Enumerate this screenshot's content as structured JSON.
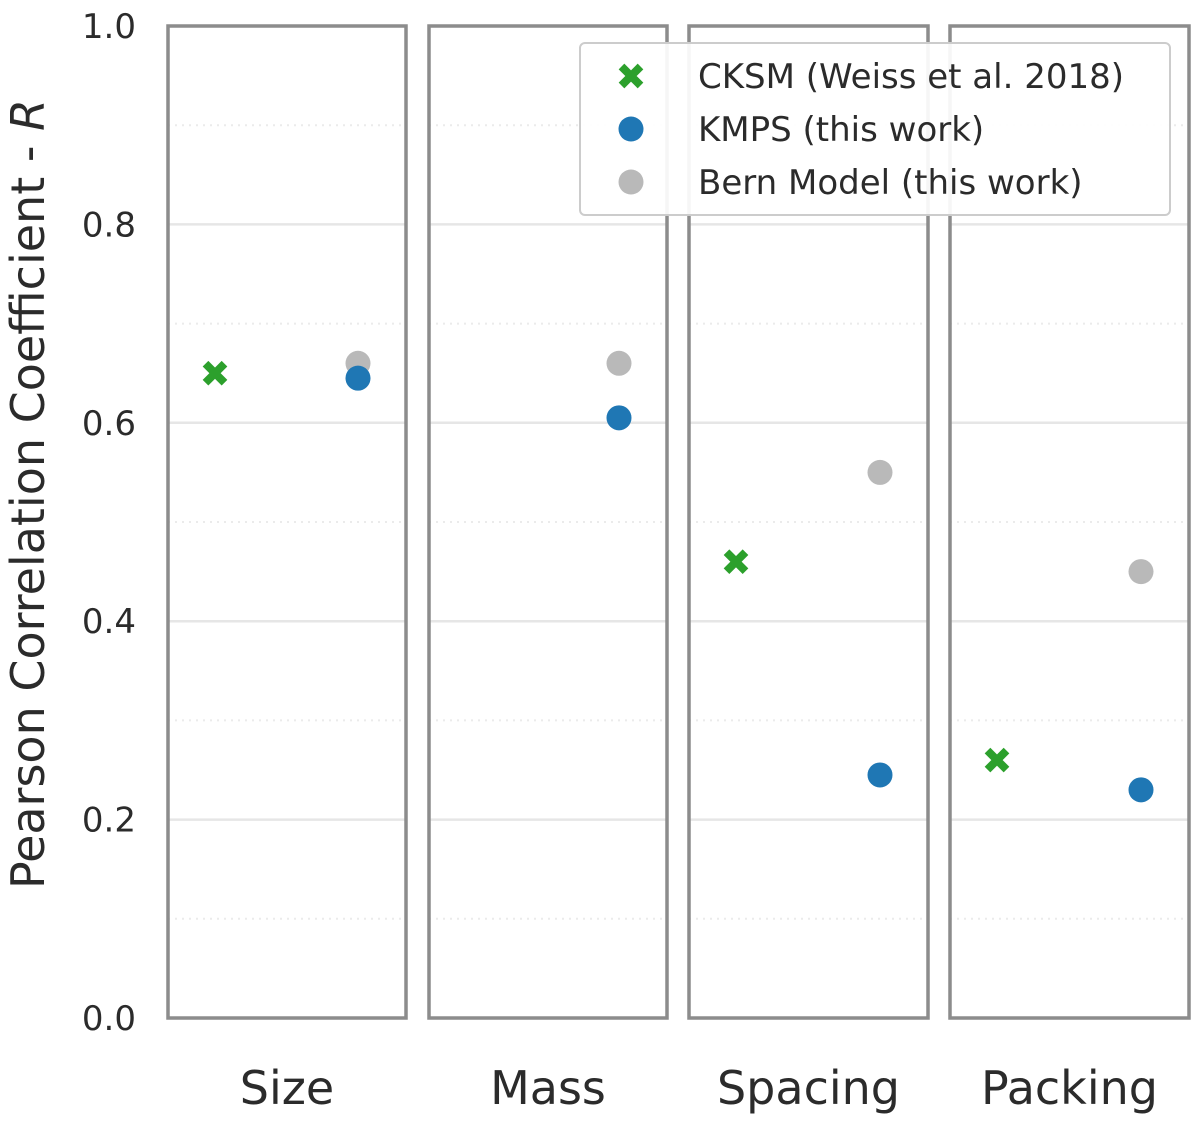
{
  "chart_data": {
    "type": "scatter",
    "title": "",
    "ylabel": "Pearson Correlation Coefficient - ",
    "ylabel_italic": "R",
    "ylim": [
      0.0,
      1.0
    ],
    "yticks": [
      "0.0",
      "0.2",
      "0.4",
      "0.6",
      "0.8",
      "1.0"
    ],
    "ytick_values": [
      0.0,
      0.2,
      0.4,
      0.6,
      0.8,
      1.0
    ],
    "minor_gridlines": [
      0.1,
      0.3,
      0.5,
      0.7,
      0.9
    ],
    "categories": [
      "Size",
      "Mass",
      "Spacing",
      "Packing"
    ],
    "legend_position": "top-right",
    "series": [
      {
        "name": "CKSM (Weiss et al. 2018)",
        "marker": "x",
        "color": "#2ca02c",
        "slot": "left",
        "values": [
          0.65,
          null,
          0.46,
          0.26
        ]
      },
      {
        "name": "KMPS (this work)",
        "marker": "circle",
        "color": "#1f77b4",
        "slot": "right",
        "values": [
          0.645,
          0.605,
          0.245,
          0.23
        ]
      },
      {
        "name": "Bern Model (this work)",
        "marker": "circle",
        "color": "#b9b9b9",
        "slot": "right",
        "values": [
          0.66,
          0.66,
          0.55,
          0.45
        ]
      }
    ]
  }
}
